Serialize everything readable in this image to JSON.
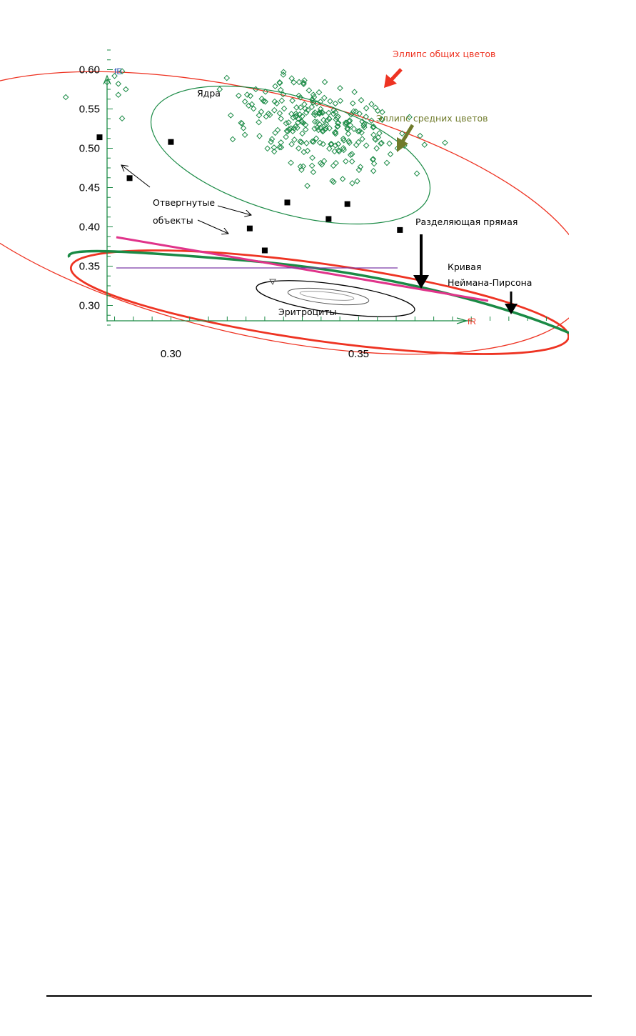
{
  "chart_data": {
    "type": "scatter",
    "x_axis": {
      "name": "fR",
      "ticks": [
        0.3,
        0.35
      ],
      "tick_labels": [
        "0.30",
        "0.35"
      ]
    },
    "y_axis": {
      "name": "fB",
      "ticks": [
        0.3,
        0.35,
        0.4,
        0.45,
        0.5,
        0.55,
        0.6
      ],
      "tick_labels": [
        "0.30",
        "0.35",
        "0.40",
        "0.45",
        "0.50",
        "0.55",
        "0.60"
      ]
    },
    "xlim": [
      0.283,
      0.406
    ],
    "ylim": [
      0.275,
      0.625
    ],
    "grid": false,
    "colors": {
      "nuclei": "#1a8a45",
      "general_ellipse": "#ee3322",
      "mean_ellipse": "#1a8a45",
      "rejected": "#000000",
      "separating_line": "#e0338a",
      "neyman_pearson": "#1a8a45",
      "horizontal_line": "#7a3aa8",
      "arrow_red": "#ee3322",
      "arrow_olive": "#6f7a2a",
      "erythrocytes": "#000000"
    },
    "rejected_points": [
      [
        0.281,
        0.514
      ],
      [
        0.289,
        0.462
      ],
      [
        0.3,
        0.508
      ],
      [
        0.321,
        0.398
      ],
      [
        0.325,
        0.37
      ],
      [
        0.331,
        0.431
      ],
      [
        0.342,
        0.41
      ],
      [
        0.347,
        0.429
      ],
      [
        0.361,
        0.396
      ]
    ],
    "nuclei_outliers": [
      [
        0.283,
        0.584
      ],
      [
        0.285,
        0.592
      ],
      [
        0.286,
        0.582
      ],
      [
        0.287,
        0.538
      ],
      [
        0.288,
        0.575
      ],
      [
        0.286,
        0.568
      ],
      [
        0.287,
        0.598
      ],
      [
        0.272,
        0.565
      ],
      [
        0.313,
        0.575
      ],
      [
        0.33,
        0.597
      ],
      [
        0.373,
        0.507
      ]
    ],
    "labels": {
      "general_ellipse": "Эллипс общих цветов",
      "mean_ellipse": "Эллипс средних цветов",
      "nuclei": "Ядра",
      "rejected_line1": "Отвергнутые",
      "rejected_line2": "объекты",
      "separating_line": "Разделяющая прямая",
      "np_line1": "Кривая",
      "np_line2": "Неймана-Пирсона",
      "erythrocytes": "Эритроциты"
    }
  }
}
